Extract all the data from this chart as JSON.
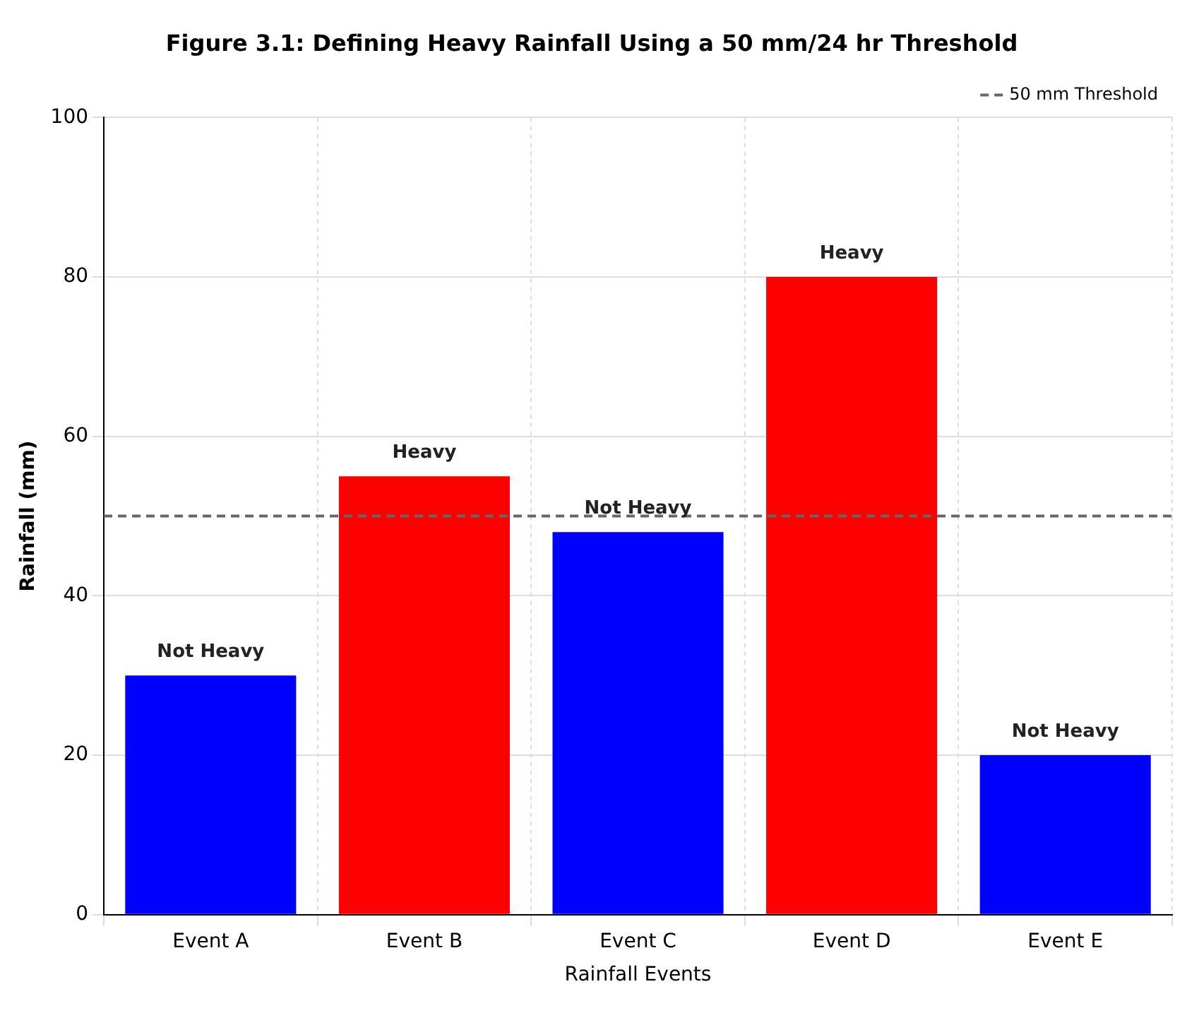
{
  "chart_data": {
    "type": "bar",
    "title": "Figure 3.1: Defining Heavy Rainfall Using a 50 mm/24 hr Threshold",
    "xlabel": "Rainfall Events",
    "ylabel": "Rainfall (mm)",
    "categories": [
      "Event A",
      "Event B",
      "Event C",
      "Event D",
      "Event E"
    ],
    "values": [
      30,
      55,
      48,
      80,
      20
    ],
    "colors": [
      "#0000ff",
      "#ff0000",
      "#0000ff",
      "#ff0000",
      "#0000ff"
    ],
    "value_labels": [
      "Not Heavy",
      "Heavy",
      "Not Heavy",
      "Heavy",
      "Not Heavy"
    ],
    "ylim": [
      0,
      100
    ],
    "yticks": [
      0,
      20,
      40,
      60,
      80,
      100
    ],
    "ref_lines": [
      {
        "axis": "y",
        "value": 50,
        "label": "50 mm Threshold",
        "color": "#666666",
        "line_style": "dashed"
      }
    ],
    "grid": true,
    "legend": "top right"
  }
}
